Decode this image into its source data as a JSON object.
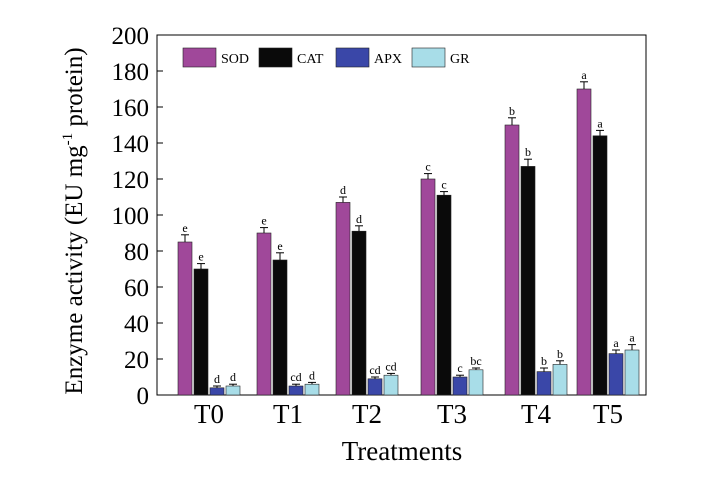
{
  "chart_data": {
    "type": "bar",
    "title": "",
    "xlabel": "Treatments",
    "ylabel_main": "Enzyme activity (EU mg",
    "ylabel_sup": "-1",
    "ylabel_tail": " protein)",
    "ylim": [
      0,
      200
    ],
    "yticks": [
      0,
      20,
      40,
      60,
      80,
      100,
      120,
      140,
      160,
      180,
      200
    ],
    "categories": [
      "T0",
      "T1",
      "T2",
      "T3",
      "T4",
      "T5"
    ],
    "legend_position": "top-left",
    "series": [
      {
        "name": "SOD",
        "color": "#a0489a",
        "values": [
          85,
          90,
          107,
          120,
          150,
          170
        ],
        "errors": [
          4,
          3,
          3,
          3,
          4,
          4
        ],
        "labels": [
          "e",
          "e",
          "d",
          "c",
          "b",
          "a"
        ]
      },
      {
        "name": "CAT",
        "color": "#0a0a0a",
        "values": [
          70,
          75,
          91,
          111,
          127,
          144
        ],
        "errors": [
          3,
          4,
          3,
          2,
          4,
          3
        ],
        "labels": [
          "e",
          "e",
          "d",
          "c",
          "b",
          "a"
        ]
      },
      {
        "name": "APX",
        "color": "#3a47a8",
        "values": [
          4,
          5,
          9,
          10,
          13,
          23
        ],
        "errors": [
          1,
          1,
          1,
          1,
          2,
          2
        ],
        "labels": [
          "d",
          "cd",
          "cd",
          "c",
          "b",
          "a"
        ]
      },
      {
        "name": "GR",
        "color": "#a8dde8",
        "values": [
          5,
          6,
          11,
          14,
          17,
          25
        ],
        "errors": [
          1,
          1,
          1,
          1,
          2,
          3
        ],
        "labels": [
          "d",
          "d",
          "cd",
          "bc",
          "b",
          "a"
        ]
      }
    ]
  }
}
